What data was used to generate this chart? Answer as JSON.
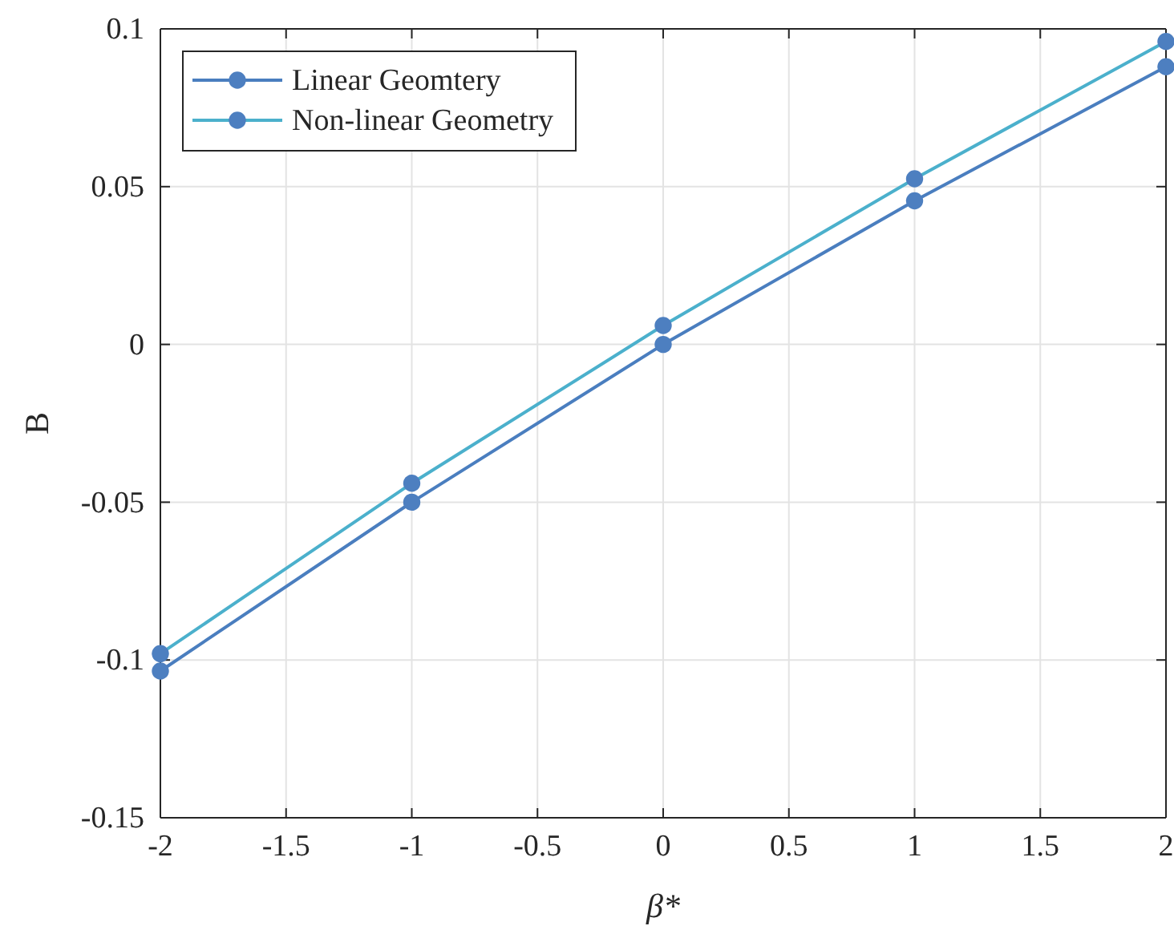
{
  "chart_data": {
    "type": "line",
    "xlabel": "β*",
    "ylabel": "B",
    "x": [
      -2,
      -1,
      0,
      1,
      2
    ],
    "series": [
      {
        "name": "Linear Geomtery",
        "color": "#4a7ebf",
        "values": [
          -0.1035,
          -0.05,
          0,
          0.0455,
          0.088
        ]
      },
      {
        "name": "Non-linear Geometry",
        "color": "#4bb0cc",
        "values": [
          -0.098,
          -0.044,
          0.006,
          0.0525,
          0.096
        ]
      }
    ],
    "xlim": [
      -2,
      2
    ],
    "xticks": [
      -2,
      -1.5,
      -1,
      -0.5,
      0,
      0.5,
      1,
      1.5,
      2
    ],
    "ylim": [
      -0.15,
      0.1
    ],
    "yticks": [
      -0.15,
      -0.1,
      -0.05,
      0,
      0.05,
      0.1
    ],
    "grid": true,
    "legend": "top left",
    "marker": "circle",
    "line_style": "solid"
  }
}
